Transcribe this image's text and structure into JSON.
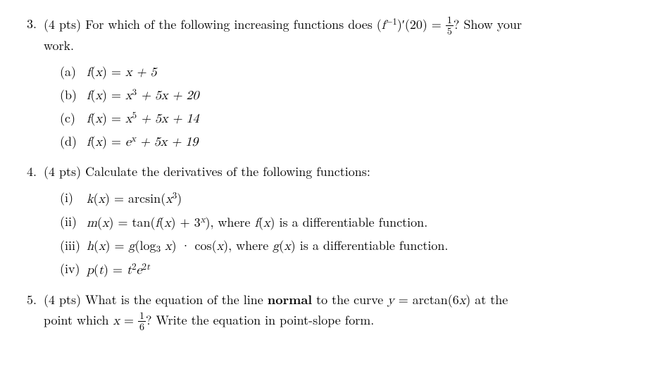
{
  "q3": {
    "number": "3.",
    "pts": "(4 pts)",
    "prompt_a": "For which of the following increasing functions does (",
    "prompt_b": ")′(20) = ",
    "prompt_c": "? Show your",
    "prompt_line2": "work.",
    "finv": "f",
    "inv_sup": "−1",
    "frac_n": "1",
    "frac_d": "5",
    "items": [
      {
        "label": "(a)",
        "lhs": "f",
        "arg": "(x) = ",
        "rhs": "x + 5"
      },
      {
        "label": "(b)",
        "lhs": "f",
        "arg": "(x) = ",
        "rhs_html": "x<sup class='rm'>3</sup> + 5x + 20"
      },
      {
        "label": "(c)",
        "lhs": "f",
        "arg": "(x) = ",
        "rhs_html": "x<sup class='rm'>5</sup> + 5x + 14"
      },
      {
        "label": "(d)",
        "lhs": "f",
        "arg": "(x) = ",
        "rhs_html": "e<sup>x</sup> + 5x + 19"
      }
    ]
  },
  "q4": {
    "number": "4.",
    "pts": "(4 pts)",
    "prompt": "Calculate the derivatives of the following functions:",
    "items": [
      {
        "label": "(i)",
        "expr_html": "<span class='math'>k</span>(<span class='math'>x</span>) = arcsin(<span class='math'>x</span><sup class='rm'>3</sup>)"
      },
      {
        "label": "(ii)",
        "expr_html": "<span class='math'>m</span>(<span class='math'>x</span>) = tan(<span class='math'>f</span>(<span class='math'>x</span>) + 3<sup><span class='math'>x</span></sup>), where <span class='math'>f</span>(<span class='math'>x</span>) is a differentiable function."
      },
      {
        "label": "(iii)",
        "expr_html": "<span class='math'>h</span>(<span class='math'>x</span>) = <span class='math'>g</span>(log<sub class='rm'>3</sub> <span class='math'>x</span>) · cos(<span class='math'>x</span>), where <span class='math'>g</span>(<span class='math'>x</span>) is a differentiable function."
      },
      {
        "label": "(iv)",
        "expr_html": "<span class='math'>p</span>(<span class='math'>t</span>) = <span class='math'>t</span><sup class='rm'>2</sup><span class='math'>e</span><sup class='rm'>2<span class='math'>t</span></sup>"
      }
    ]
  },
  "q5": {
    "number": "5.",
    "pts": "(4 pts)",
    "line1_a": "What is the equation of the line ",
    "normal": "normal",
    "line1_b": " to the curve ",
    "eq_html": "<span class='math'>y</span> = arctan(6<span class='math'>x</span>)",
    "line1_c": " at the",
    "line2_a": "point which ",
    "x_html": "<span class='math'>x</span> = ",
    "frac_n": "1",
    "frac_d": "6",
    "line2_b": "? Write the equation in point-slope form."
  }
}
